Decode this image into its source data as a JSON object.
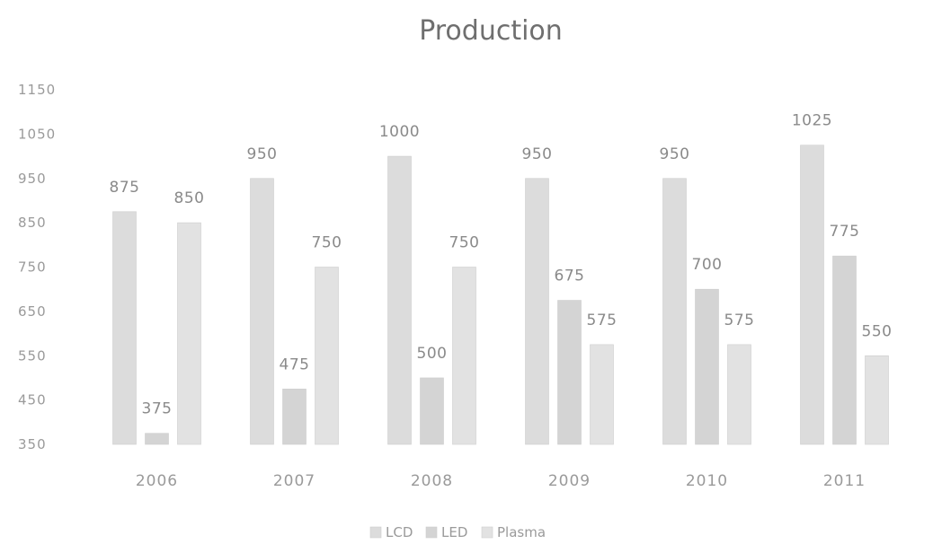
{
  "chart_data": {
    "type": "bar",
    "title": "Production",
    "xlabel": "",
    "ylabel": "",
    "categories": [
      "2006",
      "2007",
      "2008",
      "2009",
      "2010",
      "2011"
    ],
    "series": [
      {
        "name": "LCD",
        "color": "#dcdcdc",
        "values": [
          875,
          950,
          1000,
          950,
          950,
          1025
        ]
      },
      {
        "name": "LED",
        "color": "#d4d4d4",
        "values": [
          375,
          475,
          500,
          675,
          700,
          775
        ]
      },
      {
        "name": "Plasma",
        "color": "#e2e2e2",
        "values": [
          850,
          750,
          750,
          575,
          575,
          550
        ]
      }
    ],
    "ylim": [
      350,
      1150
    ],
    "yticks": [
      350,
      450,
      550,
      650,
      750,
      850,
      950,
      1050,
      1150
    ],
    "grid": false,
    "legend_position": "bottom",
    "data_labels": true
  }
}
